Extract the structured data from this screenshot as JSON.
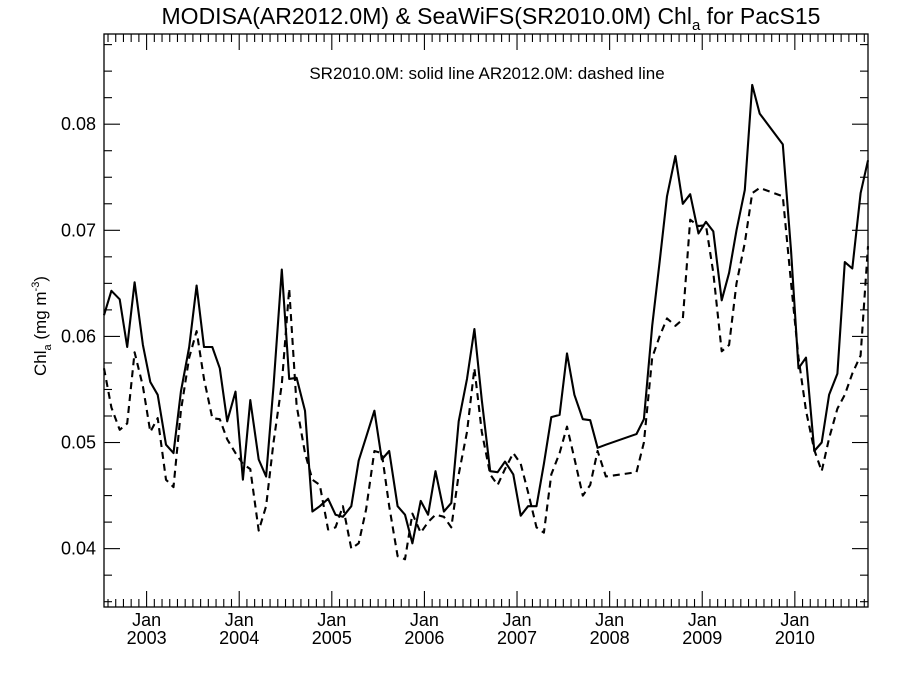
{
  "chart_data": {
    "type": "line",
    "title": {
      "main": "MODISA(AR2012.0M) & SeaWiFS(SR2010.0M)  Chl",
      "sub": "a",
      "suffix": " for PacS15"
    },
    "annotation": "SR2010.0M: solid line   AR2012.0M: dashed line",
    "ylabel": {
      "main": "Chl",
      "sub": "a",
      "unit_open": " (mg m",
      "unit_sup": "-3",
      "unit_close": ")"
    },
    "xlim": [
      2002.54,
      2010.79
    ],
    "ylim": [
      0.0345,
      0.0885
    ],
    "y_ticks": [
      0.04,
      0.05,
      0.06,
      0.07,
      0.08
    ],
    "y_tick_labels": [
      "0.04",
      "0.05",
      "0.06",
      "0.07",
      "0.08"
    ],
    "x_major_ticks": [
      {
        "x": 2003.0,
        "month": "Jan",
        "year": "2003"
      },
      {
        "x": 2004.0,
        "month": "Jan",
        "year": "2004"
      },
      {
        "x": 2005.0,
        "month": "Jan",
        "year": "2005"
      },
      {
        "x": 2006.0,
        "month": "Jan",
        "year": "2006"
      },
      {
        "x": 2007.0,
        "month": "Jan",
        "year": "2007"
      },
      {
        "x": 2008.0,
        "month": "Jan",
        "year": "2008"
      },
      {
        "x": 2009.0,
        "month": "Jan",
        "year": "2009"
      },
      {
        "x": 2010.0,
        "month": "Jan",
        "year": "2010"
      }
    ],
    "grid": false,
    "series": [
      {
        "style": "solid",
        "x": [
          2002.54,
          2002.62,
          2002.71,
          2002.79,
          2002.87,
          2002.96,
          2003.04,
          2003.12,
          2003.21,
          2003.29,
          2003.37,
          2003.46,
          2003.54,
          2003.62,
          2003.71,
          2003.79,
          2003.87,
          2003.96,
          2004.04,
          2004.12,
          2004.21,
          2004.29,
          2004.37,
          2004.46,
          2004.54,
          2004.62,
          2004.71,
          2004.79,
          2004.87,
          2004.96,
          2005.04,
          2005.12,
          2005.21,
          2005.29,
          2005.37,
          2005.46,
          2005.54,
          2005.62,
          2005.71,
          2005.79,
          2005.87,
          2005.96,
          2006.04,
          2006.12,
          2006.21,
          2006.29,
          2006.37,
          2006.46,
          2006.54,
          2006.62,
          2006.71,
          2006.79,
          2006.87,
          2006.96,
          2007.04,
          2007.12,
          2007.21,
          2007.29,
          2007.37,
          2007.46,
          2007.54,
          2007.62,
          2007.71,
          2007.79,
          2007.87,
          2007.96,
          2008.29,
          2008.37,
          2008.46,
          2008.54,
          2008.62,
          2008.71,
          2008.79,
          2008.87,
          2008.96,
          2009.04,
          2009.12,
          2009.21,
          2009.29,
          2009.37,
          2009.46,
          2009.54,
          2009.62,
          2009.87,
          2009.96,
          2010.04,
          2010.12,
          2010.21,
          2010.29,
          2010.37,
          2010.46,
          2010.54,
          2010.62,
          2010.71,
          2010.79
        ],
        "y": [
          0.062,
          0.0643,
          0.0635,
          0.059,
          0.0651,
          0.0592,
          0.0557,
          0.0545,
          0.0498,
          0.049,
          0.0548,
          0.059,
          0.0648,
          0.059,
          0.059,
          0.057,
          0.052,
          0.0548,
          0.0465,
          0.054,
          0.0484,
          0.0468,
          0.0553,
          0.0663,
          0.056,
          0.0561,
          0.053,
          0.0435,
          0.044,
          0.0447,
          0.0432,
          0.043,
          0.044,
          0.0483,
          0.0505,
          0.053,
          0.0484,
          0.0492,
          0.044,
          0.0432,
          0.0405,
          0.0445,
          0.0432,
          0.0473,
          0.0435,
          0.0443,
          0.052,
          0.056,
          0.0607,
          0.054,
          0.0473,
          0.0472,
          0.0482,
          0.047,
          0.0431,
          0.044,
          0.044,
          0.048,
          0.0524,
          0.0526,
          0.0584,
          0.0545,
          0.0522,
          0.0521,
          0.0495,
          0.0498,
          0.0508,
          0.0522,
          0.061,
          0.067,
          0.0732,
          0.077,
          0.0725,
          0.0734,
          0.0697,
          0.0708,
          0.0699,
          0.0634,
          0.066,
          0.07,
          0.0738,
          0.0837,
          0.081,
          0.0781,
          0.068,
          0.057,
          0.058,
          0.0492,
          0.05,
          0.0545,
          0.0565,
          0.067,
          0.0664,
          0.0735,
          0.0766
        ]
      },
      {
        "style": "dashed",
        "x": [
          2002.54,
          2002.62,
          2002.71,
          2002.79,
          2002.87,
          2002.96,
          2003.04,
          2003.12,
          2003.21,
          2003.29,
          2003.37,
          2003.46,
          2003.54,
          2003.62,
          2003.71,
          2003.79,
          2003.87,
          2003.96,
          2004.04,
          2004.12,
          2004.21,
          2004.29,
          2004.37,
          2004.46,
          2004.54,
          2004.62,
          2004.71,
          2004.79,
          2004.87,
          2004.96,
          2005.04,
          2005.12,
          2005.21,
          2005.29,
          2005.37,
          2005.46,
          2005.54,
          2005.62,
          2005.71,
          2005.79,
          2005.87,
          2005.96,
          2006.04,
          2006.12,
          2006.21,
          2006.29,
          2006.37,
          2006.46,
          2006.54,
          2006.62,
          2006.71,
          2006.79,
          2006.87,
          2006.96,
          2007.04,
          2007.12,
          2007.21,
          2007.29,
          2007.37,
          2007.46,
          2007.54,
          2007.62,
          2007.71,
          2007.79,
          2007.87,
          2007.96,
          2008.29,
          2008.37,
          2008.46,
          2008.54,
          2008.62,
          2008.71,
          2008.79,
          2008.87,
          2008.96,
          2009.04,
          2009.12,
          2009.21,
          2009.29,
          2009.37,
          2009.46,
          2009.54,
          2009.62,
          2009.87,
          2009.96,
          2010.04,
          2010.12,
          2010.21,
          2010.29,
          2010.37,
          2010.46,
          2010.54,
          2010.62,
          2010.71,
          2010.79
        ],
        "y": [
          0.057,
          0.0533,
          0.0512,
          0.0518,
          0.0585,
          0.0553,
          0.051,
          0.0523,
          0.0465,
          0.0458,
          0.053,
          0.058,
          0.0605,
          0.056,
          0.0523,
          0.0522,
          0.0503,
          0.049,
          0.048,
          0.0475,
          0.0417,
          0.044,
          0.05,
          0.0555,
          0.0645,
          0.0535,
          0.049,
          0.0465,
          0.046,
          0.0418,
          0.042,
          0.044,
          0.04,
          0.0405,
          0.0437,
          0.0492,
          0.049,
          0.044,
          0.0393,
          0.039,
          0.0433,
          0.0415,
          0.0425,
          0.0432,
          0.043,
          0.042,
          0.047,
          0.051,
          0.057,
          0.051,
          0.047,
          0.046,
          0.0475,
          0.049,
          0.048,
          0.0453,
          0.042,
          0.0415,
          0.047,
          0.049,
          0.0515,
          0.0485,
          0.045,
          0.046,
          0.0492,
          0.0468,
          0.0472,
          0.05,
          0.058,
          0.06,
          0.0617,
          0.061,
          0.0616,
          0.071,
          0.0704,
          0.0705,
          0.066,
          0.0586,
          0.0592,
          0.065,
          0.0688,
          0.0735,
          0.074,
          0.0732,
          0.065,
          0.058,
          0.053,
          0.0493,
          0.0473,
          0.0504,
          0.0532,
          0.0545,
          0.0565,
          0.0582,
          0.0685
        ]
      }
    ]
  }
}
